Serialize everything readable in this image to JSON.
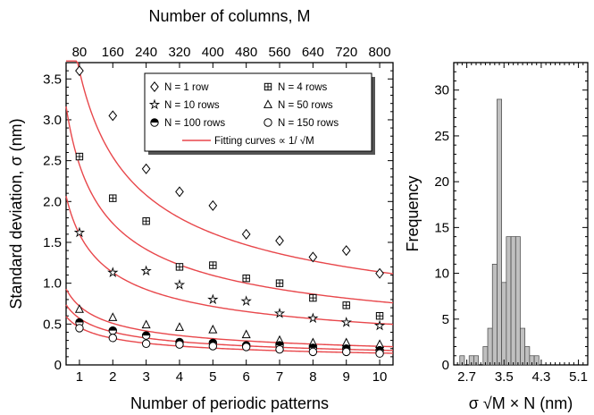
{
  "chart_data": [
    {
      "type": "scatter",
      "xlabel": "Number of periodic patterns",
      "x2label": "Number of columns, M",
      "ylabel": "Standard deviation, σ (nm)",
      "x": [
        1,
        2,
        3,
        4,
        5,
        6,
        7,
        8,
        9,
        10
      ],
      "x_ticks": [
        "1",
        "2",
        "3",
        "4",
        "5",
        "6",
        "7",
        "8",
        "9",
        "10"
      ],
      "x2_ticks": [
        "80",
        "160",
        "240",
        "320",
        "400",
        "480",
        "560",
        "640",
        "720",
        "800"
      ],
      "xlim": [
        0.6,
        10.4
      ],
      "ylim": [
        0,
        3.7
      ],
      "y_ticks": [
        "0",
        "0.5",
        "1.0",
        "1.5",
        "2.0",
        "2.5",
        "3.0",
        "3.5"
      ],
      "series": [
        {
          "name": "N = 1 row",
          "marker": "diamond",
          "values": [
            3.6,
            3.05,
            2.4,
            2.12,
            1.95,
            1.6,
            1.52,
            1.32,
            1.4,
            1.12
          ],
          "fit_a": 3.6
        },
        {
          "name": "N = 4 rows",
          "marker": "square-plus",
          "values": [
            2.55,
            2.04,
            1.76,
            1.2,
            1.22,
            1.06,
            1.0,
            0.82,
            0.73,
            0.6
          ],
          "fit_a": 2.45
        },
        {
          "name": "N = 10 rows",
          "marker": "star",
          "values": [
            1.62,
            1.13,
            1.15,
            0.98,
            0.8,
            0.78,
            0.63,
            0.57,
            0.52,
            0.48
          ],
          "fit_a": 1.6
        },
        {
          "name": "N = 50 rows",
          "marker": "triangle",
          "values": [
            0.68,
            0.58,
            0.49,
            0.46,
            0.43,
            0.37,
            0.3,
            0.27,
            0.27,
            0.25
          ],
          "fit_a": 0.72
        },
        {
          "name": "N = 100  rows",
          "marker": "half-circle",
          "values": [
            0.52,
            0.42,
            0.36,
            0.28,
            0.27,
            0.24,
            0.24,
            0.21,
            0.2,
            0.18
          ],
          "fit_a": 0.57
        },
        {
          "name": "N = 150 rows",
          "marker": "circle",
          "values": [
            0.45,
            0.33,
            0.26,
            0.25,
            0.23,
            0.22,
            0.19,
            0.16,
            0.16,
            0.14
          ],
          "fit_a": 0.46
        }
      ],
      "fit_label_prefix": "Fitting curves ∝ 1/ ",
      "fit_label_root": "√M",
      "fit_color": "#e8474b",
      "legend": "top-right"
    },
    {
      "type": "bar",
      "ylabel": "Frequency",
      "xlabel_prefix": "σ ",
      "xlabel_root": "√M × N",
      "xlabel_suffix": " (nm)",
      "bin_centers": [
        2.5,
        2.6,
        2.7,
        2.8,
        2.9,
        3.0,
        3.1,
        3.2,
        3.3,
        3.4,
        3.5,
        3.6,
        3.7,
        3.8,
        3.9,
        4.0,
        4.1,
        4.2,
        4.3,
        4.4,
        4.5,
        4.6,
        4.7,
        4.8,
        4.9,
        5.0,
        5.1,
        5.2
      ],
      "values": [
        0,
        1,
        0,
        1,
        1,
        0,
        2,
        4,
        11,
        29,
        9,
        14,
        14,
        14,
        4,
        2,
        1,
        1,
        0,
        0,
        0,
        0,
        0,
        0,
        0,
        0,
        0,
        0
      ],
      "x_ticks": [
        "2.7",
        "3.5",
        "4.3",
        "5.1"
      ],
      "xlim": [
        2.42,
        5.3
      ],
      "ylim": [
        0,
        33
      ],
      "y_ticks": [
        "0",
        "5",
        "10",
        "15",
        "20",
        "25",
        "30"
      ],
      "bar_color": "#c0c0c0"
    }
  ]
}
